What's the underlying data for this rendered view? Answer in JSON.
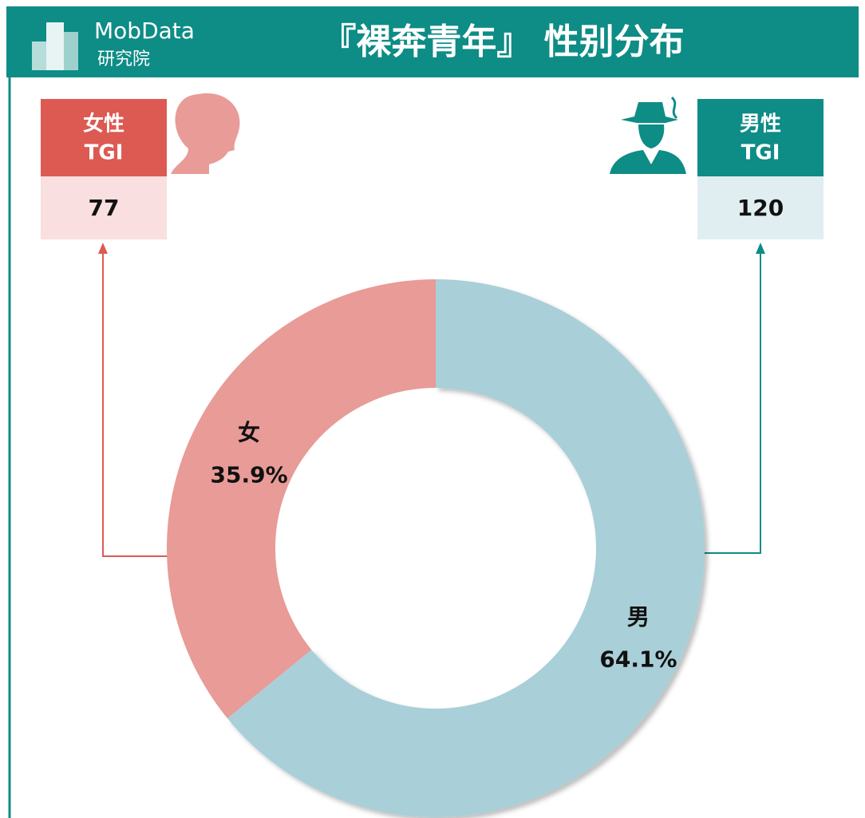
{
  "header": {
    "logo": "MobData",
    "logo_sub": "研究院",
    "title": "『裸奔青年』 性别分布"
  },
  "tgi": [
    {
      "name": "女性",
      "label": "TGI",
      "value": 77,
      "color": "#dc5a52",
      "bg": "#f9dfdf"
    },
    {
      "name": "男性",
      "label": "TGI",
      "value": 120,
      "color": "#0e8c86",
      "bg": "#e1eef1"
    }
  ],
  "chart_data": {
    "type": "pie",
    "donut": true,
    "categories": [
      "男",
      "女"
    ],
    "values": [
      64.1,
      35.9
    ],
    "value_labels": [
      "64.1%",
      "35.9%"
    ],
    "colors": [
      "#a9cfd8",
      "#e89b97"
    ]
  }
}
